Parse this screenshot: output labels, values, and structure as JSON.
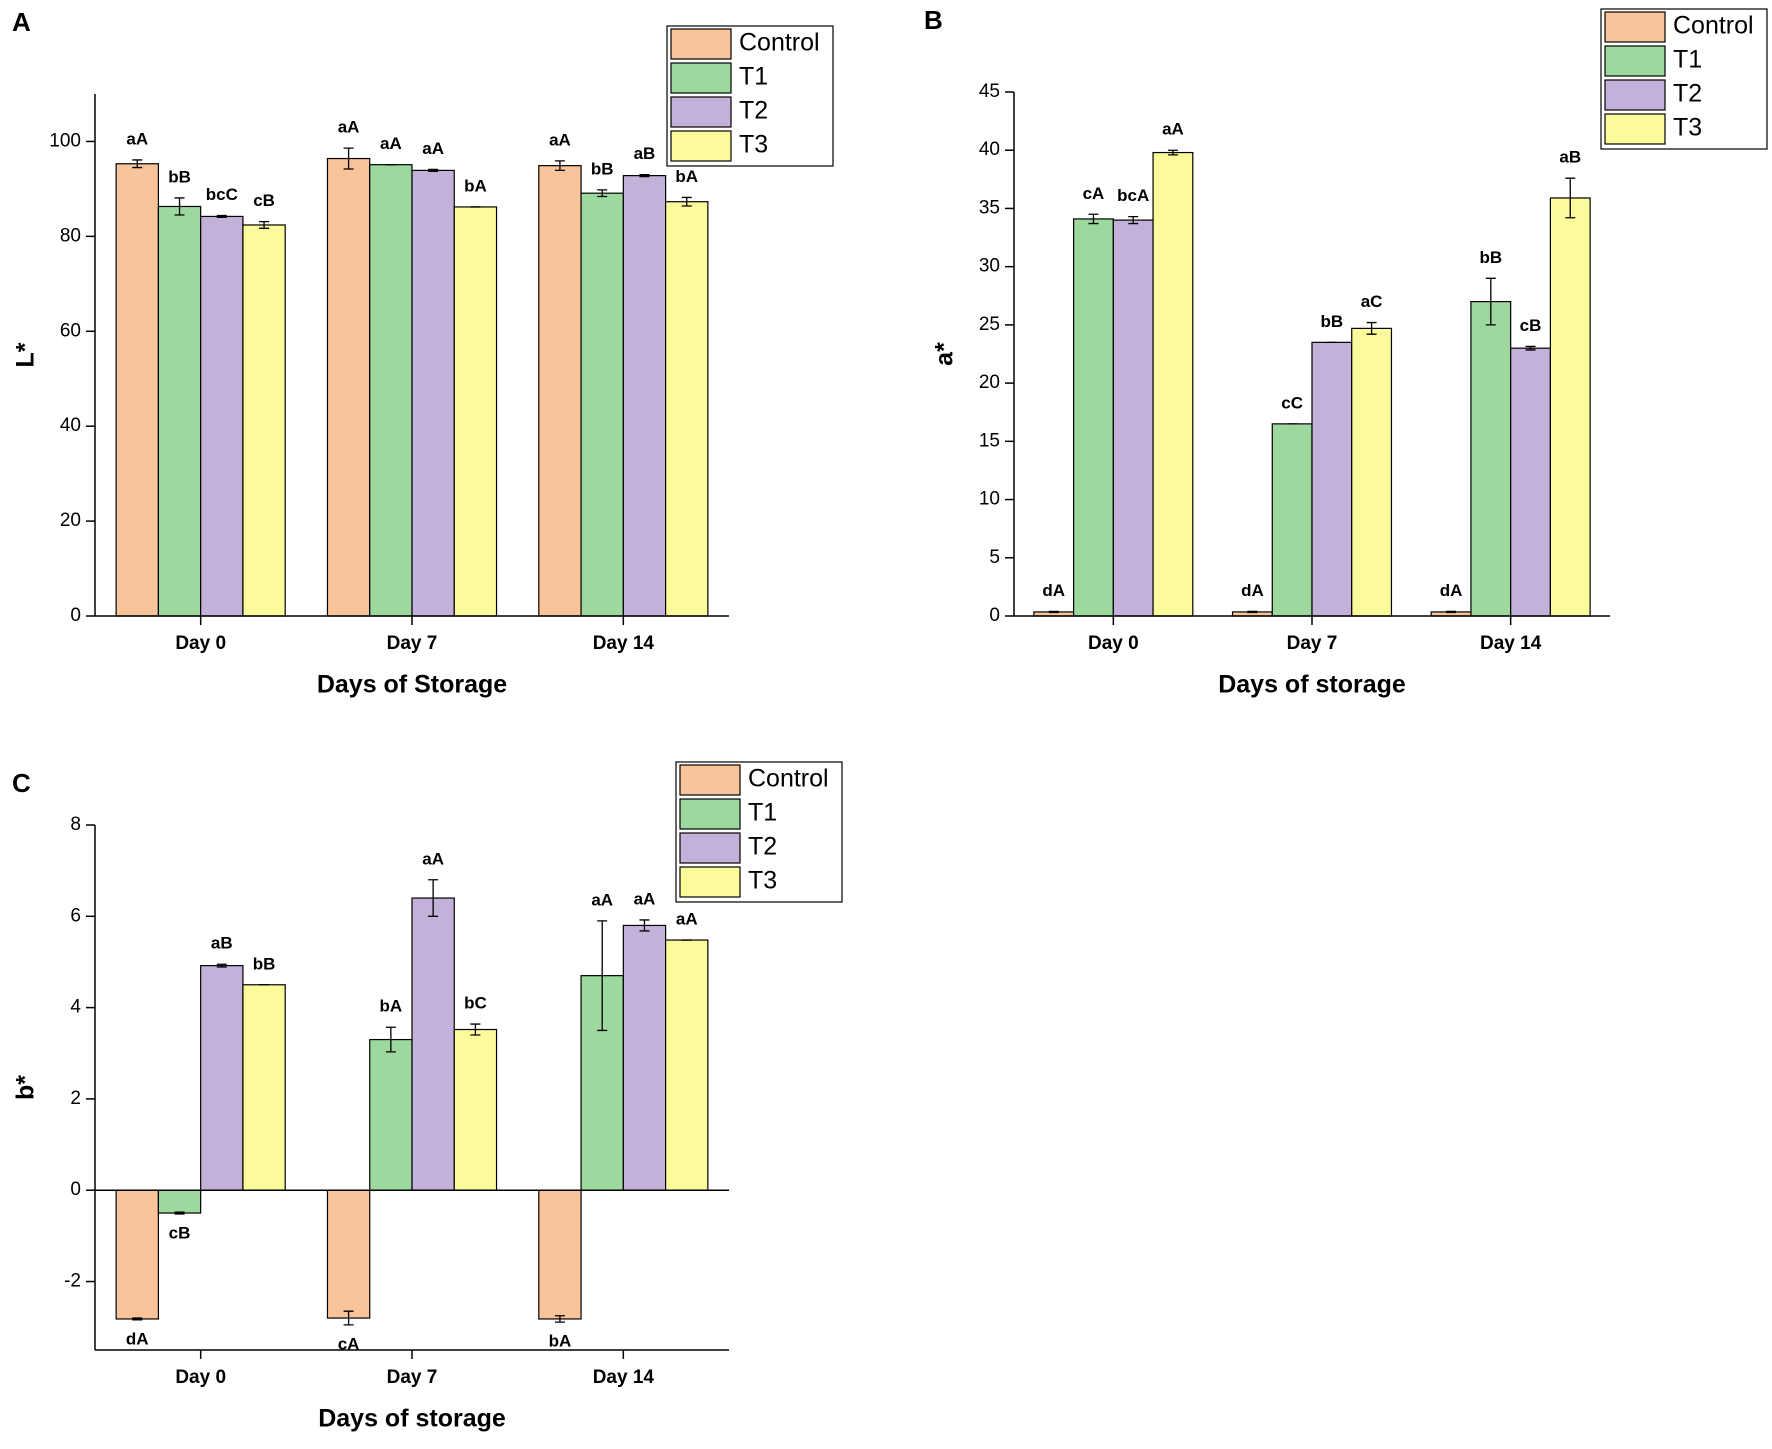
{
  "chart_data": [
    {
      "type": "bar",
      "panel": "A",
      "xlabel": "Days of Storage",
      "ylabel": "L*",
      "categories": [
        "Day 0",
        "Day 7",
        "Day 14"
      ],
      "ylim": [
        0,
        110
      ],
      "yticks": [
        0,
        20,
        40,
        60,
        80,
        100
      ],
      "series": [
        {
          "name": "Control",
          "color": "#f9c49a",
          "values": [
            95.3,
            96.4,
            94.9
          ],
          "errors": [
            0.8,
            2.2,
            1.0
          ],
          "annotations": [
            "aA",
            "aA",
            "aA"
          ]
        },
        {
          "name": "T1",
          "color": "#9dd89e",
          "values": [
            86.3,
            95.1,
            89.1
          ],
          "errors": [
            1.8,
            0,
            0.7
          ],
          "annotations": [
            "bB",
            "aA",
            "bB"
          ]
        },
        {
          "name": "T2",
          "color": "#c2b1d9",
          "values": [
            84.2,
            93.9,
            92.8
          ],
          "errors": [
            0.2,
            0.2,
            0.2
          ],
          "annotations": [
            "bcC",
            "aA",
            "aB"
          ]
        },
        {
          "name": "T3",
          "color": "#fbfb9c",
          "values": [
            82.4,
            86.2,
            87.3
          ],
          "errors": [
            0.7,
            0,
            0.9
          ],
          "annotations": [
            "cB",
            "bA",
            "bA"
          ]
        }
      ]
    },
    {
      "type": "bar",
      "panel": "B",
      "xlabel": "Days of storage",
      "ylabel": "a*",
      "categories": [
        "Day 0",
        "Day 7",
        "Day 14"
      ],
      "ylim": [
        0,
        45
      ],
      "yticks": [
        0,
        5,
        10,
        15,
        20,
        25,
        30,
        35,
        40,
        45
      ],
      "series": [
        {
          "name": "Control",
          "color": "#f9c49a",
          "values": [
            0.35,
            0.35,
            0.35
          ],
          "errors": [
            0.05,
            0.05,
            0.05
          ],
          "annotations": [
            "dA",
            "dA",
            "dA"
          ]
        },
        {
          "name": "T1",
          "color": "#9dd89e",
          "values": [
            34.1,
            16.5,
            27.0
          ],
          "errors": [
            0.4,
            0,
            2.0
          ],
          "annotations": [
            "cA",
            "cC",
            "bB"
          ]
        },
        {
          "name": "T2",
          "color": "#c2b1d9",
          "values": [
            34.0,
            23.5,
            23.0
          ],
          "errors": [
            0.3,
            0,
            0.15
          ],
          "annotations": [
            "bcA",
            "bB",
            "cB"
          ]
        },
        {
          "name": "T3",
          "color": "#fbfb9c",
          "values": [
            39.8,
            24.7,
            35.9
          ],
          "errors": [
            0.2,
            0.5,
            1.7
          ],
          "annotations": [
            "aA",
            "aC",
            "aB"
          ]
        }
      ]
    },
    {
      "type": "bar",
      "panel": "C",
      "xlabel": "Days of storage",
      "ylabel": "b*",
      "categories": [
        "Day 0",
        "Day 7",
        "Day 14"
      ],
      "ylim": [
        -3.5,
        8
      ],
      "yticks": [
        -2,
        0,
        2,
        4,
        6,
        8
      ],
      "series": [
        {
          "name": "Control",
          "color": "#f9c49a",
          "values": [
            -2.82,
            -2.8,
            -2.82
          ],
          "errors": [
            0.02,
            0.15,
            0.07
          ],
          "annotations": [
            "dA",
            "cA",
            "bA"
          ]
        },
        {
          "name": "T1",
          "color": "#9dd89e",
          "values": [
            -0.5,
            3.3,
            4.7
          ],
          "errors": [
            0.02,
            0.27,
            1.2
          ],
          "annotations": [
            "cB",
            "bA",
            "aA"
          ]
        },
        {
          "name": "T2",
          "color": "#c2b1d9",
          "values": [
            4.92,
            6.4,
            5.8
          ],
          "errors": [
            0.03,
            0.4,
            0.12
          ],
          "annotations": [
            "aB",
            "aA",
            "aA"
          ]
        },
        {
          "name": "T3",
          "color": "#fbfb9c",
          "values": [
            4.5,
            3.52,
            5.48
          ],
          "errors": [
            0,
            0.12,
            0
          ],
          "annotations": [
            "bB",
            "bC",
            "aA"
          ]
        }
      ]
    }
  ]
}
